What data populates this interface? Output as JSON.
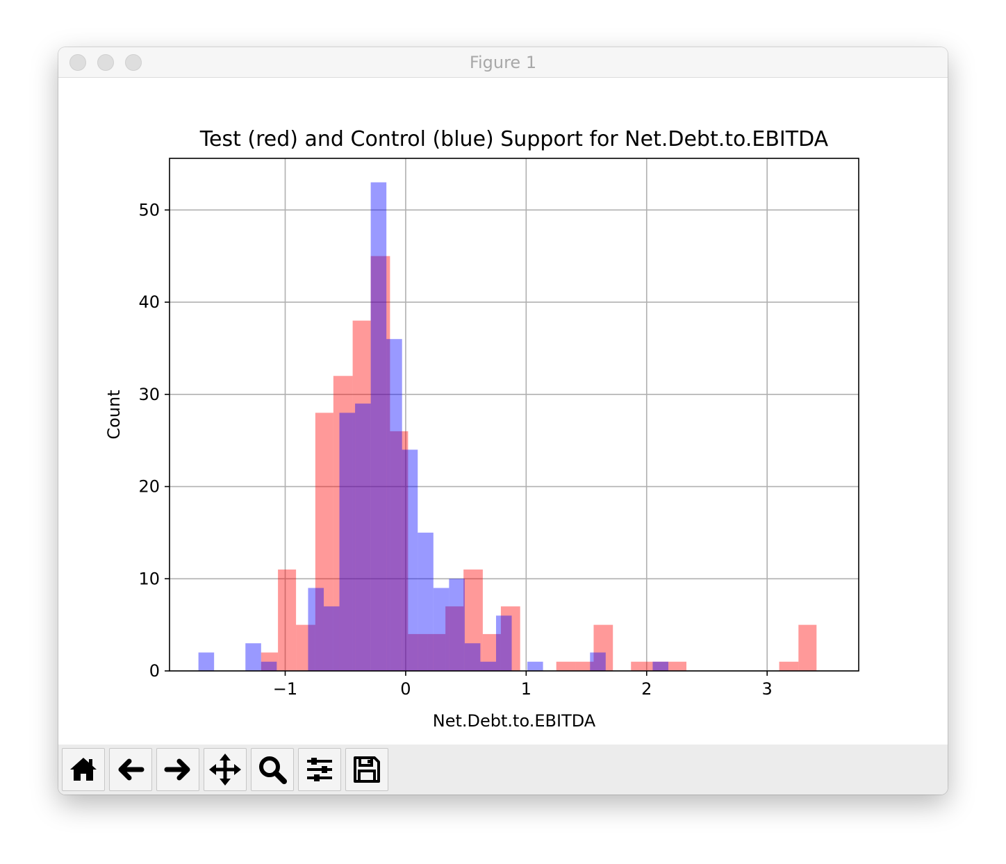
{
  "window": {
    "title": "Figure 1"
  },
  "toolbar": {
    "buttons": [
      {
        "name": "home-button",
        "icon": "home-icon"
      },
      {
        "name": "back-button",
        "icon": "arrow-left-icon"
      },
      {
        "name": "forward-button",
        "icon": "arrow-right-icon"
      },
      {
        "name": "pan-button",
        "icon": "move-icon"
      },
      {
        "name": "zoom-button",
        "icon": "magnifier-icon"
      },
      {
        "name": "configure-subplots-button",
        "icon": "sliders-icon"
      },
      {
        "name": "save-button",
        "icon": "floppy-disk-icon"
      }
    ]
  },
  "chart_data": {
    "type": "bar",
    "subtype": "overlapping-histogram",
    "title": "Test (red) and Control (blue) Support for Net.Debt.to.EBITDA",
    "xlabel": "Net.Debt.to.EBITDA",
    "ylabel": "Count",
    "xlim": [
      -1.96,
      3.76
    ],
    "ylim": [
      0,
      55.6
    ],
    "xticks": [
      -1,
      0,
      1,
      2,
      3
    ],
    "xtick_labels": [
      "−1",
      "0",
      "1",
      "2",
      "3"
    ],
    "yticks": [
      0,
      10,
      20,
      30,
      40,
      50
    ],
    "ytick_labels": [
      "0",
      "10",
      "20",
      "30",
      "40",
      "50"
    ],
    "grid": true,
    "series": [
      {
        "color": "#ff0000",
        "alpha": 0.4,
        "bins": [
          {
            "x0": -1.2,
            "x1": -1.06,
            "count": 2
          },
          {
            "x0": -1.06,
            "x1": -0.91,
            "count": 11
          },
          {
            "x0": -0.91,
            "x1": -0.75,
            "count": 5
          },
          {
            "x0": -0.75,
            "x1": -0.6,
            "count": 28
          },
          {
            "x0": -0.6,
            "x1": -0.44,
            "count": 32
          },
          {
            "x0": -0.44,
            "x1": -0.29,
            "count": 38
          },
          {
            "x0": -0.29,
            "x1": -0.13,
            "count": 45
          },
          {
            "x0": -0.13,
            "x1": 0.02,
            "count": 26
          },
          {
            "x0": 0.02,
            "x1": 0.18,
            "count": 4
          },
          {
            "x0": 0.18,
            "x1": 0.33,
            "count": 4
          },
          {
            "x0": 0.33,
            "x1": 0.48,
            "count": 7
          },
          {
            "x0": 0.48,
            "x1": 0.64,
            "count": 11
          },
          {
            "x0": 0.64,
            "x1": 0.79,
            "count": 4
          },
          {
            "x0": 0.79,
            "x1": 0.95,
            "count": 7
          },
          {
            "x0": 1.25,
            "x1": 1.41,
            "count": 1
          },
          {
            "x0": 1.41,
            "x1": 1.56,
            "count": 1
          },
          {
            "x0": 1.56,
            "x1": 1.72,
            "count": 5
          },
          {
            "x0": 1.87,
            "x1": 2.02,
            "count": 1
          },
          {
            "x0": 2.02,
            "x1": 2.18,
            "count": 1
          },
          {
            "x0": 2.18,
            "x1": 2.33,
            "count": 1
          },
          {
            "x0": 3.1,
            "x1": 3.26,
            "count": 1
          },
          {
            "x0": 3.26,
            "x1": 3.41,
            "count": 5
          }
        ]
      },
      {
        "color": "#0000ff",
        "alpha": 0.4,
        "bins": [
          {
            "x0": -1.72,
            "x1": -1.59,
            "count": 2
          },
          {
            "x0": -1.33,
            "x1": -1.2,
            "count": 3
          },
          {
            "x0": -1.2,
            "x1": -1.07,
            "count": 1
          },
          {
            "x0": -0.81,
            "x1": -0.68,
            "count": 9
          },
          {
            "x0": -0.68,
            "x1": -0.55,
            "count": 7
          },
          {
            "x0": -0.55,
            "x1": -0.42,
            "count": 28
          },
          {
            "x0": -0.42,
            "x1": -0.29,
            "count": 29
          },
          {
            "x0": -0.29,
            "x1": -0.16,
            "count": 53
          },
          {
            "x0": -0.16,
            "x1": -0.03,
            "count": 36
          },
          {
            "x0": -0.03,
            "x1": 0.1,
            "count": 24
          },
          {
            "x0": 0.1,
            "x1": 0.23,
            "count": 15
          },
          {
            "x0": 0.23,
            "x1": 0.36,
            "count": 9
          },
          {
            "x0": 0.36,
            "x1": 0.49,
            "count": 10
          },
          {
            "x0": 0.49,
            "x1": 0.62,
            "count": 3
          },
          {
            "x0": 0.62,
            "x1": 0.75,
            "count": 1
          },
          {
            "x0": 0.75,
            "x1": 0.88,
            "count": 6
          },
          {
            "x0": 1.01,
            "x1": 1.14,
            "count": 1
          },
          {
            "x0": 1.53,
            "x1": 1.66,
            "count": 2
          },
          {
            "x0": 2.05,
            "x1": 2.18,
            "count": 1
          }
        ]
      }
    ]
  }
}
